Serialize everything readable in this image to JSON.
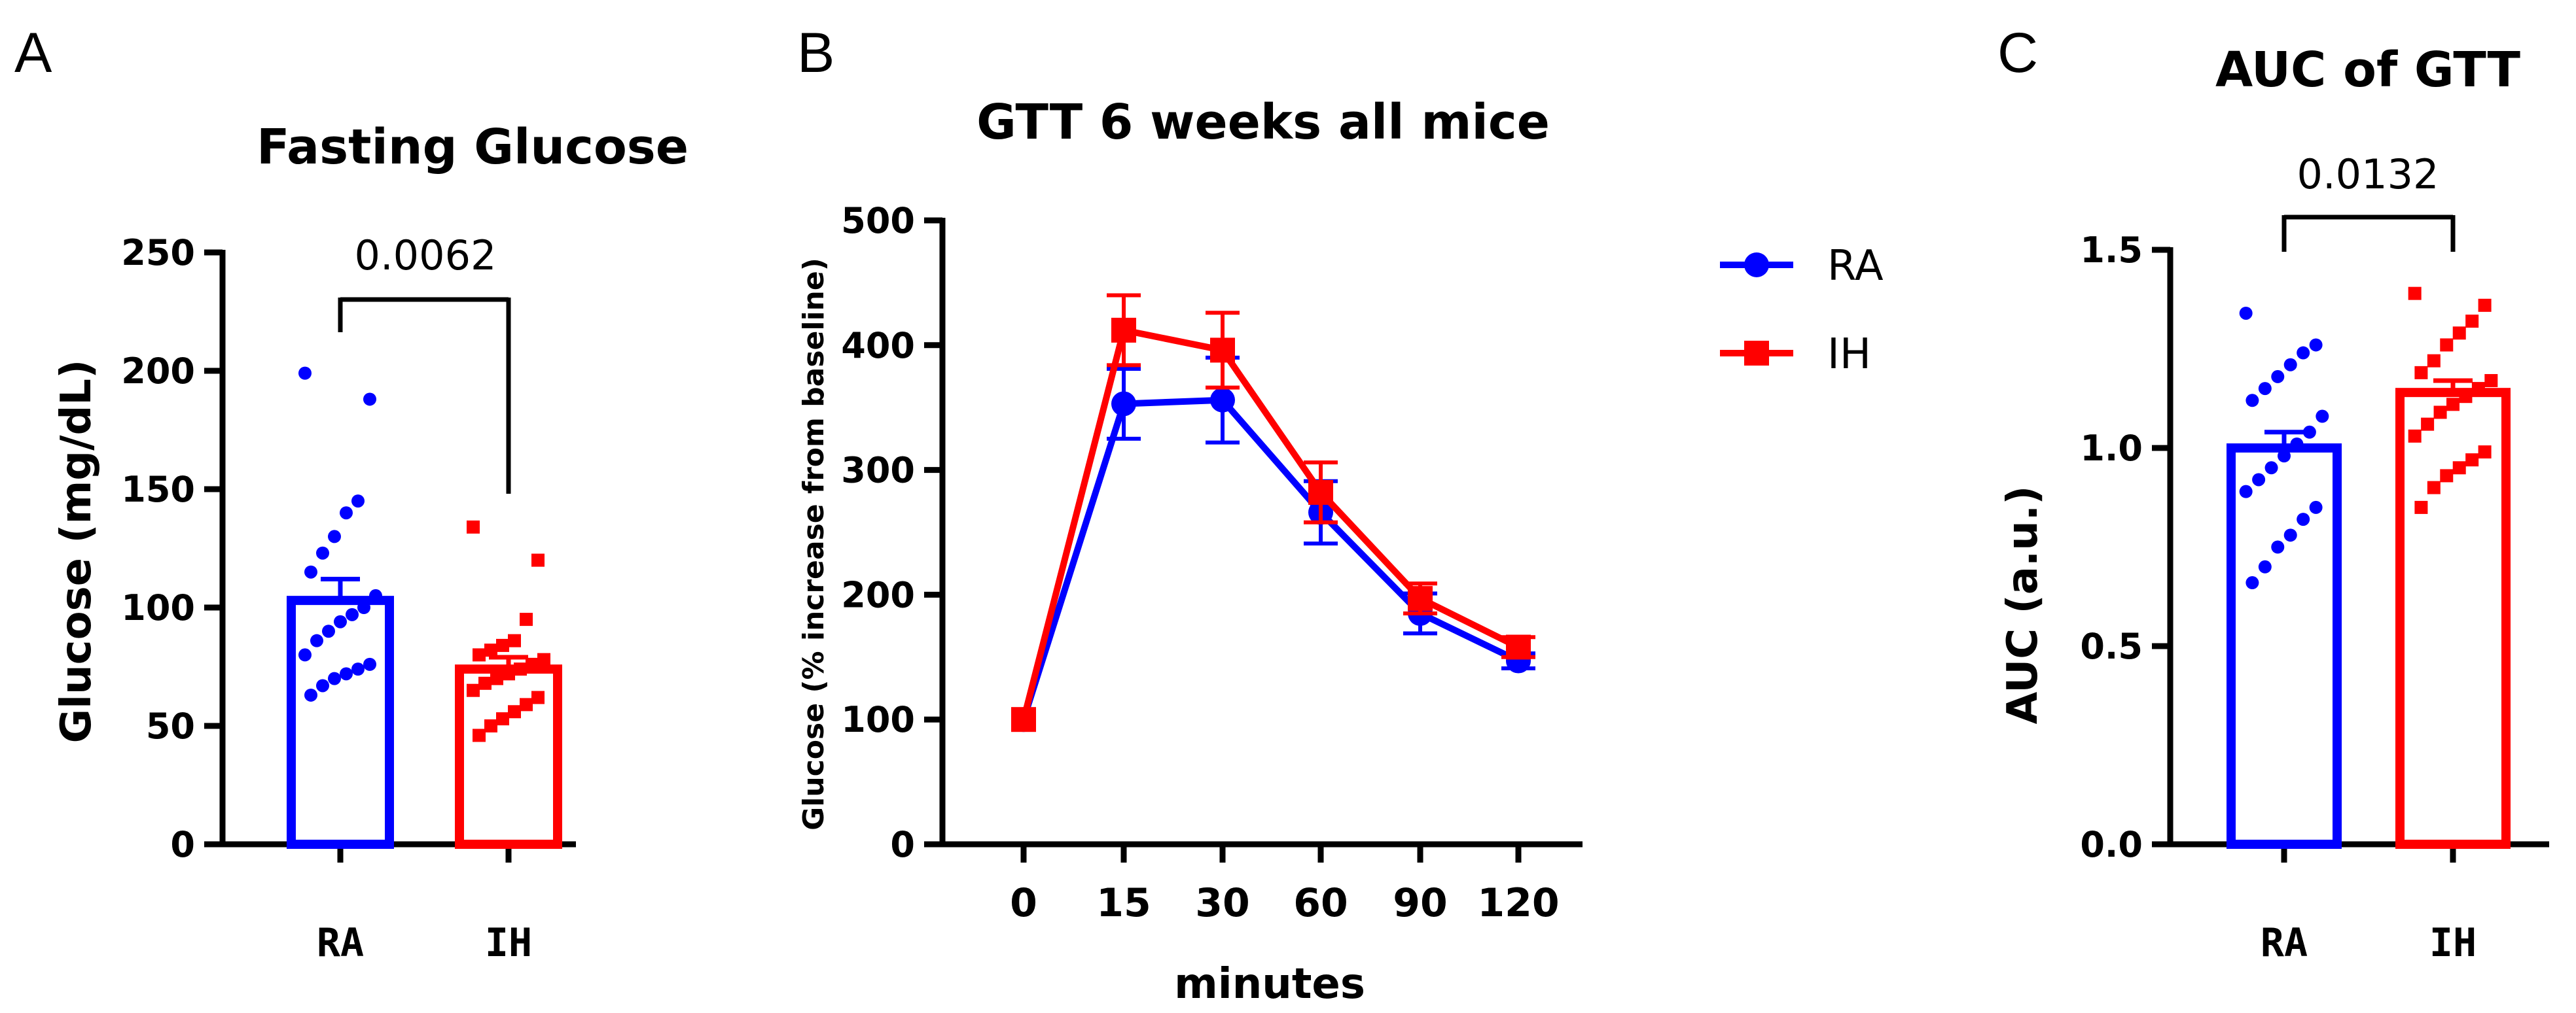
{
  "colors": {
    "RA": "#0000ff",
    "IH": "#ff0000",
    "axis": "#000000"
  },
  "chart_data": [
    {
      "panel": "A",
      "type": "bar",
      "title": "Fasting Glucose",
      "ylabel": "Glucose (mg/dL)",
      "xlabel": "",
      "ylim": [
        0,
        250
      ],
      "yticks": [
        0,
        50,
        100,
        150,
        200,
        250
      ],
      "categories": [
        "RA",
        "IH"
      ],
      "values": [
        103,
        74
      ],
      "sem": [
        9,
        5
      ],
      "points": [
        [
          199,
          188,
          145,
          140,
          130,
          123,
          115,
          105,
          100,
          97,
          94,
          90,
          86,
          80,
          76,
          74,
          72,
          70,
          67,
          63
        ],
        [
          134,
          120,
          95,
          86,
          84,
          82,
          80,
          78,
          76,
          74,
          72,
          70,
          68,
          65,
          62,
          59,
          56,
          53,
          50,
          46
        ]
      ],
      "comparison": {
        "pairs": [
          "RA",
          "IH"
        ],
        "p_value": "0.0062"
      },
      "grid": false
    },
    {
      "panel": "B",
      "type": "line",
      "title": "GTT 6 weeks all mice",
      "ylabel": "Glucose (% increase from baseline)",
      "xlabel": "minutes",
      "categories": [
        "0",
        "15",
        "30",
        "60",
        "90",
        "120"
      ],
      "ylim": [
        0,
        500
      ],
      "yticks": [
        0,
        100,
        200,
        300,
        400,
        500
      ],
      "series": [
        {
          "name": "RA",
          "values": [
            100,
            353,
            356,
            266,
            185,
            147
          ],
          "sem": [
            0,
            28,
            34,
            25,
            16,
            6
          ],
          "marker": "circle"
        },
        {
          "name": "IH",
          "values": [
            100,
            412,
            396,
            282,
            197,
            158
          ],
          "sem": [
            0,
            28,
            30,
            24,
            12,
            8
          ],
          "marker": "square"
        }
      ],
      "legend": "right",
      "grid": false
    },
    {
      "panel": "C",
      "type": "bar",
      "title": "AUC of GTT",
      "ylabel": "AUC  (a.u.)",
      "xlabel": "",
      "ylim": [
        0,
        1.5
      ],
      "yticks": [
        "0.0",
        "0.5",
        "1.0",
        "1.5"
      ],
      "categories": [
        "RA",
        "IH"
      ],
      "values": [
        1.0,
        1.14
      ],
      "sem": [
        0.04,
        0.03
      ],
      "points": [
        [
          1.34,
          1.26,
          1.24,
          1.21,
          1.18,
          1.15,
          1.12,
          1.08,
          1.04,
          1.01,
          0.98,
          0.95,
          0.92,
          0.89,
          0.85,
          0.82,
          0.78,
          0.75,
          0.7,
          0.66
        ],
        [
          1.39,
          1.36,
          1.32,
          1.29,
          1.26,
          1.22,
          1.19,
          1.17,
          1.15,
          1.13,
          1.11,
          1.09,
          1.06,
          1.03,
          0.99,
          0.97,
          0.95,
          0.93,
          0.9,
          0.85
        ]
      ],
      "comparison": {
        "pairs": [
          "RA",
          "IH"
        ],
        "p_value": "0.0132"
      },
      "grid": false
    }
  ]
}
